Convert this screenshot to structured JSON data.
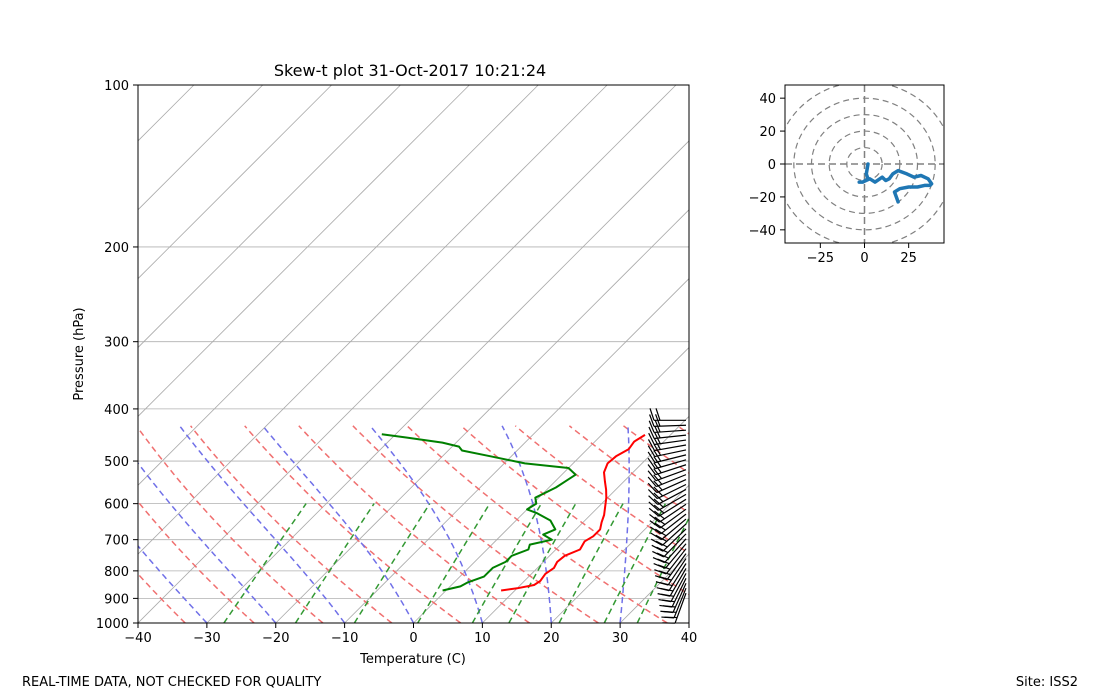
{
  "chart_data": [
    {
      "type": "skew-t",
      "title": "Skew-t plot 31-Oct-2017 10:21:24",
      "xlabel": "Temperature (C)",
      "ylabel": "Pressure (hPa)",
      "xlim": [
        -40,
        40
      ],
      "ylim": [
        1000,
        100
      ],
      "y_log_scale": true,
      "skew": "45 degrees",
      "x_ticks": [
        "−40",
        "−30",
        "−20",
        "−10",
        "0",
        "10",
        "20",
        "30",
        "40"
      ],
      "y_ticks": [
        "100",
        "200",
        "300",
        "400",
        "500",
        "600",
        "700",
        "800",
        "900",
        "1000"
      ],
      "grid": true,
      "colors": {
        "temperature": "#ff0000",
        "dewpoint": "#008000",
        "dry_adiabats": "#f07070",
        "moist_adiabats": "#7070e8",
        "mixing_ratio": "#339933",
        "isotherms": "#aaaaaa",
        "wind_barbs": "#000000"
      },
      "series": [
        {
          "name": "",
          "role": "temperature",
          "points": [
            [
              870,
              8
            ],
            [
              862,
              10
            ],
            [
              850,
              12
            ],
            [
              835,
              12.3
            ],
            [
              810,
              12
            ],
            [
              790,
              12.4
            ],
            [
              770,
              12
            ],
            [
              750,
              12.2
            ],
            [
              730,
              13.5
            ],
            [
              705,
              13
            ],
            [
              690,
              13.5
            ],
            [
              670,
              13.5
            ],
            [
              650,
              12.7
            ],
            [
              630,
              12
            ],
            [
              605,
              10.8
            ],
            [
              585,
              9.8
            ],
            [
              565,
              8.6
            ],
            [
              545,
              7.2
            ],
            [
              525,
              5.8
            ],
            [
              505,
              5
            ],
            [
              490,
              5.2
            ],
            [
              475,
              6
            ],
            [
              460,
              5.7
            ],
            [
              447,
              6.3
            ]
          ]
        },
        {
          "name": "",
          "role": "dewpoint",
          "points": [
            [
              870,
              -0.5
            ],
            [
              855,
              1.5
            ],
            [
              840,
              2
            ],
            [
              820,
              3.5
            ],
            [
              790,
              3.5
            ],
            [
              770,
              4.5
            ],
            [
              750,
              4.5
            ],
            [
              730,
              6
            ],
            [
              715,
              5.5
            ],
            [
              700,
              8
            ],
            [
              685,
              6
            ],
            [
              670,
              7
            ],
            [
              645,
              5
            ],
            [
              625,
              2
            ],
            [
              615,
              0
            ],
            [
              600,
              0.5
            ],
            [
              585,
              -0.5
            ],
            [
              560,
              1
            ],
            [
              545,
              1.5
            ],
            [
              530,
              2
            ],
            [
              515,
              0
            ],
            [
              505,
              -7
            ],
            [
              490,
              -13
            ],
            [
              478,
              -18
            ],
            [
              470,
              -19
            ],
            [
              462,
              -22
            ],
            [
              452,
              -28
            ],
            [
              446,
              -32
            ]
          ]
        }
      ],
      "wind_profile": {
        "pressure_range_hpa": [
          880,
          420
        ],
        "barb_count": 36
      }
    },
    {
      "type": "hodograph",
      "xlim": [
        -45,
        45
      ],
      "ylim": [
        -48,
        48
      ],
      "x_ticks": [
        "−25",
        "0",
        "25"
      ],
      "y_ticks": [
        "40",
        "20",
        "0",
        "−20",
        "−40"
      ],
      "range_rings": [
        10,
        20,
        30,
        40,
        50
      ],
      "color": "#1f77b4",
      "points": [
        [
          2,
          0
        ],
        [
          1,
          -6
        ],
        [
          2,
          -9
        ],
        [
          -1,
          -11
        ],
        [
          -3,
          -11
        ],
        [
          -1,
          -11
        ],
        [
          3,
          -9
        ],
        [
          6,
          -11
        ],
        [
          10,
          -8
        ],
        [
          12,
          -10
        ],
        [
          14,
          -9
        ],
        [
          16,
          -6
        ],
        [
          19,
          -4
        ],
        [
          24,
          -6
        ],
        [
          28,
          -8
        ],
        [
          32,
          -7
        ],
        [
          36,
          -9
        ],
        [
          38,
          -12
        ],
        [
          37,
          -13
        ],
        [
          34,
          -13
        ],
        [
          30,
          -14
        ],
        [
          25,
          -14
        ],
        [
          20,
          -15
        ],
        [
          17,
          -17
        ],
        [
          18,
          -20
        ],
        [
          19,
          -23
        ]
      ]
    }
  ],
  "footer": {
    "left": "REAL-TIME DATA, NOT CHECKED FOR QUALITY",
    "right": "Site: ISS2"
  }
}
